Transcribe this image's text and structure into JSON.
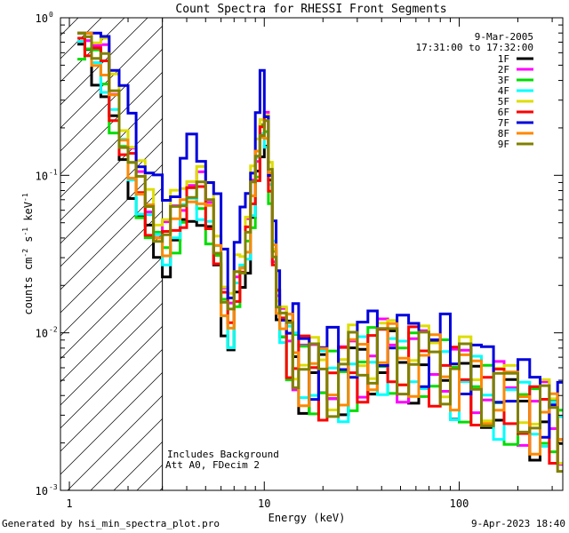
{
  "chart_data": {
    "type": "line",
    "title": "Count Spectra for RHESSI Front Segments",
    "xlabel": "Energy (keV)",
    "ylabel": "counts cm-2 s-1 keV-1",
    "xscale": "log",
    "yscale": "log",
    "xlim": [
      0.9,
      340
    ],
    "ylim": [
      0.001,
      1
    ],
    "x_ticks": [
      {
        "value": 1,
        "label": "1"
      },
      {
        "value": 10,
        "label": "10"
      },
      {
        "value": 100,
        "label": "100"
      }
    ],
    "y_ticks": [
      {
        "value": 1,
        "label": "10",
        "exp": "0"
      },
      {
        "value": 0.1,
        "label": "10",
        "exp": "-1"
      },
      {
        "value": 0.01,
        "label": "10",
        "exp": "-2"
      },
      {
        "value": 0.001,
        "label": "10",
        "exp": "-3"
      }
    ],
    "date": "9-Mar-2005",
    "time_range": "17:31:00 to 17:32:00",
    "legend_position": "top-right",
    "annotations": [
      "Includes Background",
      "Att A0, FDecim 2"
    ],
    "hatched_region_xmax_kev": 3,
    "series": [
      {
        "name": "1F",
        "color": "#000000",
        "scale": 1.0,
        "phase": 0.3
      },
      {
        "name": "2F",
        "color": "#ff00ff",
        "scale": 1.6,
        "phase": 1.1
      },
      {
        "name": "3F",
        "color": "#00dd00",
        "scale": 1.15,
        "phase": 2.0
      },
      {
        "name": "4F",
        "color": "#00ffff",
        "scale": 1.2,
        "phase": 2.7
      },
      {
        "name": "5F",
        "color": "#dddd00",
        "scale": 1.9,
        "phase": 3.5
      },
      {
        "name": "6F",
        "color": "#ff0000",
        "scale": 1.3,
        "phase": 4.2
      },
      {
        "name": "7F",
        "color": "#0000dd",
        "scale": 2.6,
        "phase": 5.0
      },
      {
        "name": "8F",
        "color": "#ff8800",
        "scale": 1.35,
        "phase": 5.8
      },
      {
        "name": "9F",
        "color": "#808000",
        "scale": 1.5,
        "phase": 0.8
      }
    ],
    "base_spectrum": {
      "energy_kev": [
        1.1,
        1.2,
        1.3,
        1.45,
        1.6,
        1.8,
        2.0,
        2.2,
        2.45,
        2.7,
        3.0,
        3.3,
        3.7,
        4.0,
        4.5,
        5.0,
        5.5,
        6.0,
        6.5,
        7.0,
        7.5,
        8.0,
        8.5,
        9.0,
        9.5,
        10.0,
        10.5,
        11.0,
        11.5,
        12.0,
        13.0,
        14.0,
        15.0,
        17.0,
        19.0,
        21.0,
        24.0,
        27.0,
        30.0,
        34.0,
        38.0,
        43.0,
        48.0,
        55.0,
        62.0,
        70.0,
        80.0,
        90.0,
        100.0,
        115.0,
        130.0,
        150.0,
        170.0,
        200.0,
        230.0,
        260.0,
        290.0,
        320.0
      ],
      "counts": [
        0.6,
        0.55,
        0.45,
        0.35,
        0.2,
        0.12,
        0.09,
        0.055,
        0.04,
        0.032,
        0.028,
        0.035,
        0.045,
        0.06,
        0.055,
        0.04,
        0.025,
        0.012,
        0.008,
        0.015,
        0.02,
        0.03,
        0.05,
        0.09,
        0.15,
        0.18,
        0.08,
        0.03,
        0.015,
        0.01,
        0.008,
        0.007,
        0.006,
        0.005,
        0.005,
        0.005,
        0.005,
        0.006,
        0.006,
        0.007,
        0.007,
        0.007,
        0.006,
        0.007,
        0.006,
        0.006,
        0.006,
        0.005,
        0.005,
        0.0045,
        0.004,
        0.0038,
        0.0035,
        0.0032,
        0.003,
        0.0028,
        0.0025,
        0.0022
      ]
    }
  },
  "footer": {
    "generated_by": "Generated by hsi_min_spectra_plot.pro",
    "timestamp": "9-Apr-2023 18:40"
  }
}
